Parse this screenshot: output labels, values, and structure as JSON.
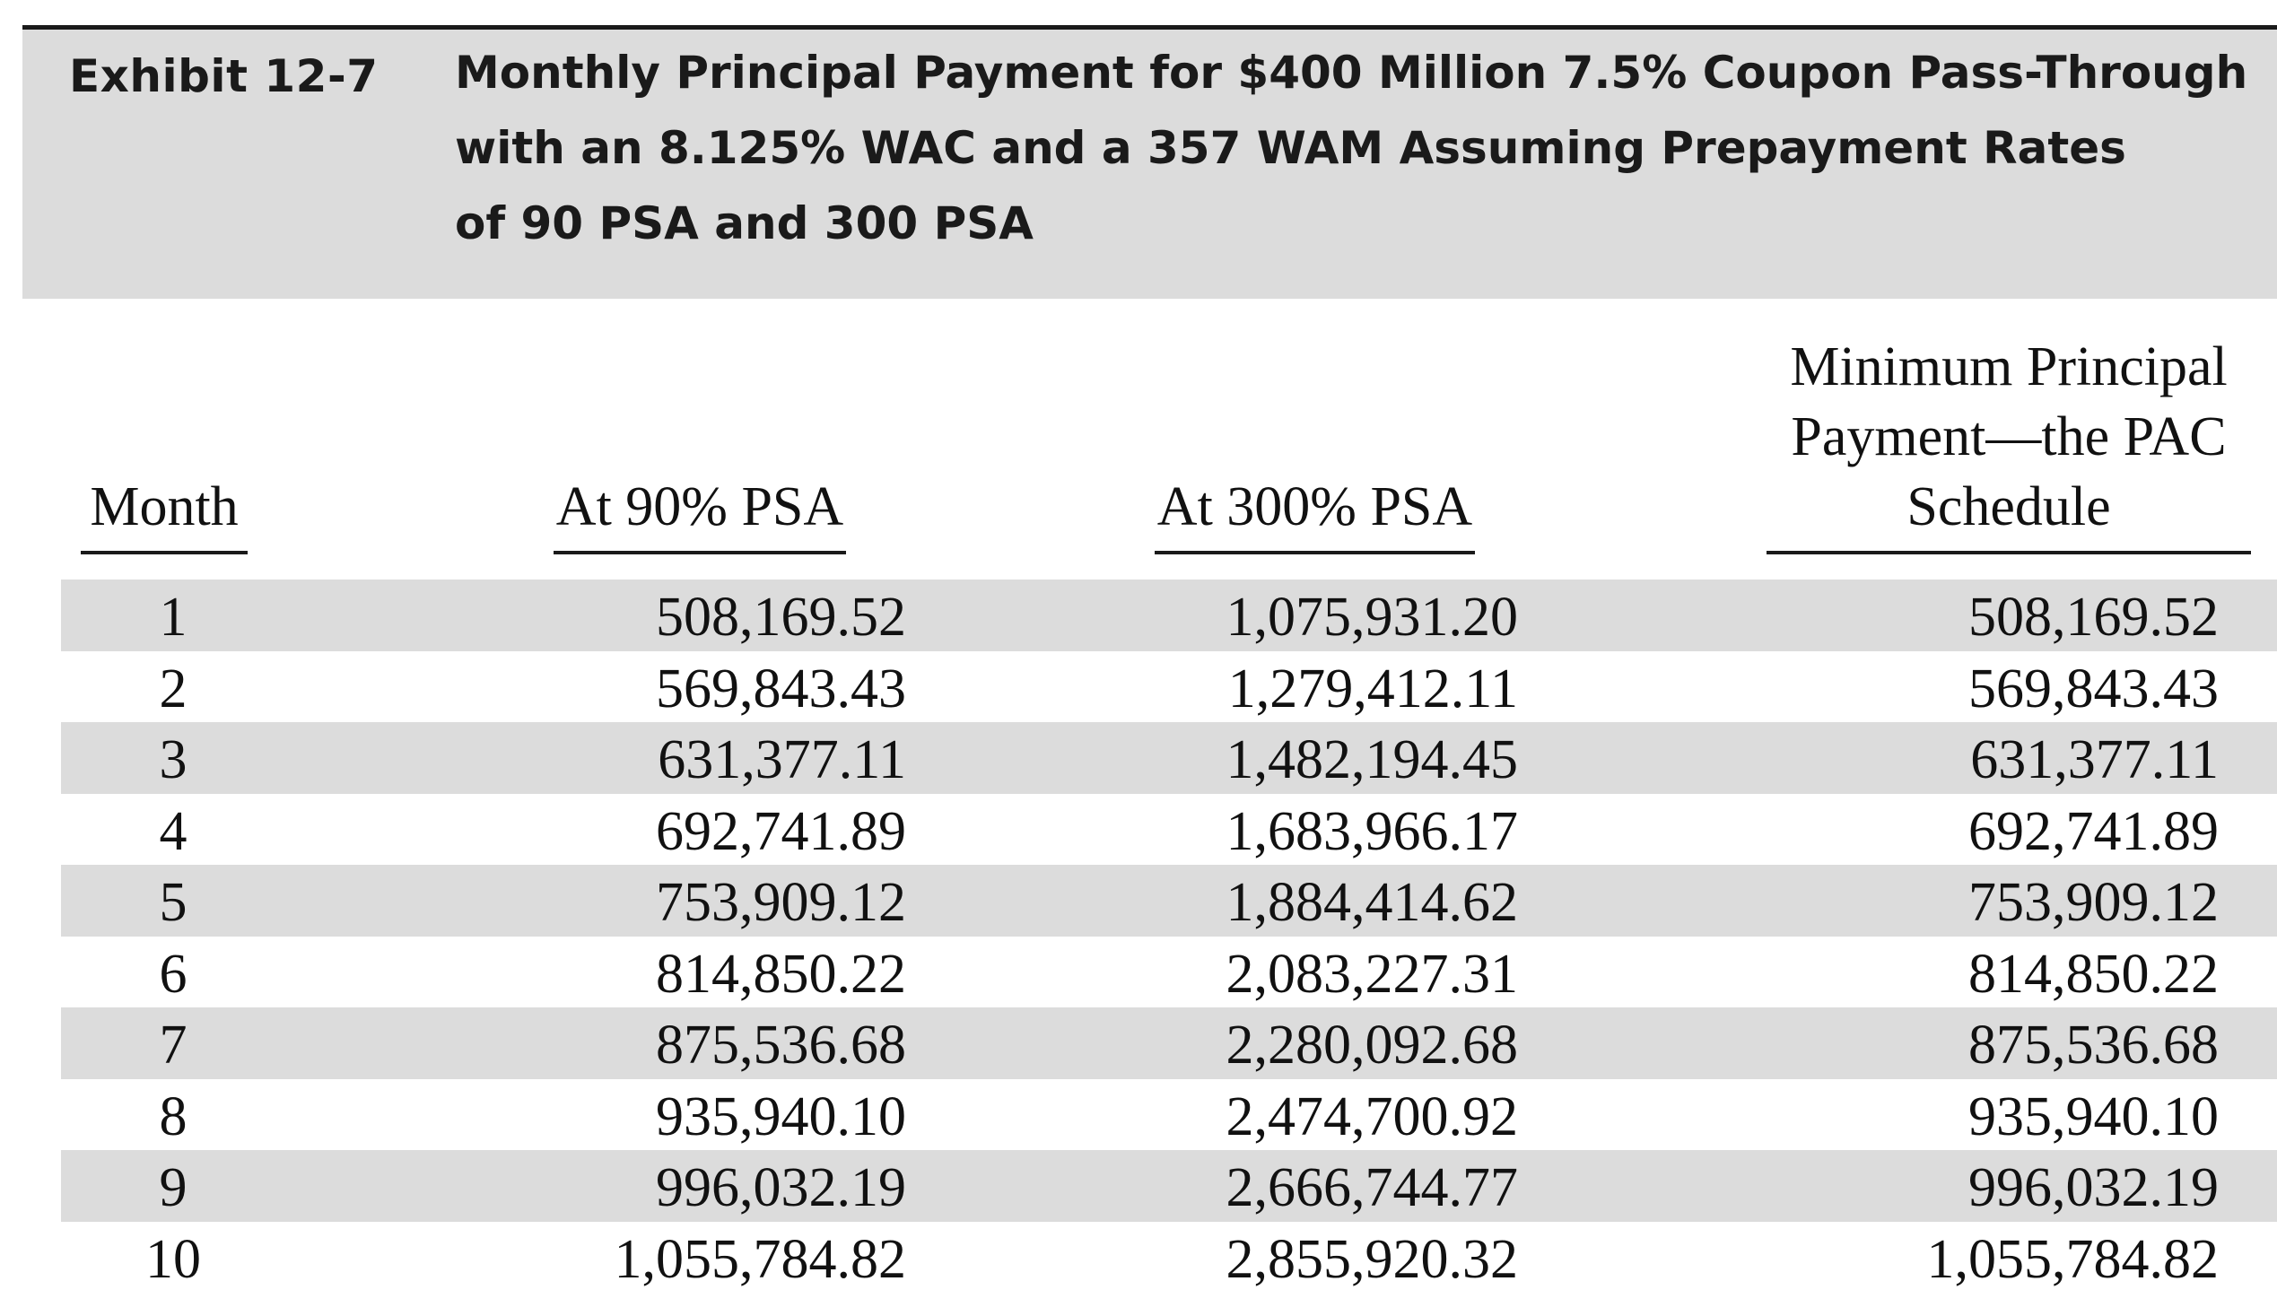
{
  "exhibit": {
    "label": "Exhibit 12-7",
    "title_lines": [
      "Monthly Principal Payment for $400 Million 7.5% Coupon Pass-Through",
      "with an 8.125% WAC and a 357 WAM Assuming Prepayment Rates",
      "of 90 PSA and 300 PSA"
    ]
  },
  "table": {
    "headers": {
      "month": "Month",
      "psa90": "At 90% PSA",
      "psa300": "At 300% PSA",
      "pac_lines": [
        "Minimum Principal",
        "Payment—the PAC",
        "Schedule"
      ]
    },
    "rows": [
      {
        "month": "1",
        "psa90": "508,169.52",
        "psa300": "1,075,931.20",
        "pac": "508,169.52"
      },
      {
        "month": "2",
        "psa90": "569,843.43",
        "psa300": "1,279,412.11",
        "pac": "569,843.43"
      },
      {
        "month": "3",
        "psa90": "631,377.11",
        "psa300": "1,482,194.45",
        "pac": "631,377.11"
      },
      {
        "month": "4",
        "psa90": "692,741.89",
        "psa300": "1,683,966.17",
        "pac": "692,741.89"
      },
      {
        "month": "5",
        "psa90": "753,909.12",
        "psa300": "1,884,414.62",
        "pac": "753,909.12"
      },
      {
        "month": "6",
        "psa90": "814,850.22",
        "psa300": "2,083,227.31",
        "pac": "814,850.22"
      },
      {
        "month": "7",
        "psa90": "875,536.68",
        "psa300": "2,280,092.68",
        "pac": "875,536.68"
      },
      {
        "month": "8",
        "psa90": "935,940.10",
        "psa300": "2,474,700.92",
        "pac": "935,940.10"
      },
      {
        "month": "9",
        "psa90": "996,032.19",
        "psa300": "2,666,744.77",
        "pac": "996,032.19"
      },
      {
        "month": "10",
        "psa90": "1,055,784.82",
        "psa300": "2,855,920.32",
        "pac": "1,055,784.82"
      }
    ]
  },
  "colors": {
    "shade": "#dcdcdc",
    "text": "#111111"
  }
}
